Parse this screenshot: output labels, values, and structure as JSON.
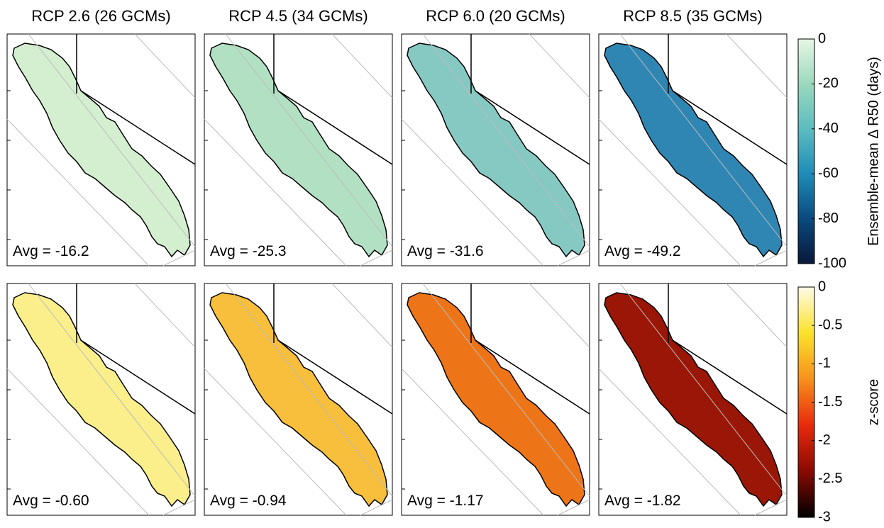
{
  "columns": [
    "RCP 2.6 (26 GCMs)",
    "RCP 4.5 (34 GCMs)",
    "RCP 6.0 (20 GCMs)",
    "RCP 8.5 (35 GCMs)"
  ],
  "rows": [
    {
      "panels": [
        {
          "label": "Avg = -16.2",
          "fill": "#d4efd0"
        },
        {
          "label": "Avg = -25.3",
          "fill": "#b2e0c3"
        },
        {
          "label": "Avg = -31.6",
          "fill": "#86c9c3"
        },
        {
          "label": "Avg = -49.2",
          "fill": "#2f86b3"
        }
      ],
      "colorbar": {
        "label": "Ensemble-mean Δ R50 (days)",
        "lim": [
          -100,
          0
        ],
        "ticks": [
          0,
          -20,
          -40,
          -60,
          -80,
          -100
        ]
      }
    },
    {
      "panels": [
        {
          "label": "Avg = -0.60",
          "fill": "#fbef8c"
        },
        {
          "label": "Avg = -0.94",
          "fill": "#f7bf3c"
        },
        {
          "label": "Avg = -1.17",
          "fill": "#ee7418"
        },
        {
          "label": "Avg = -1.82",
          "fill": "#9a1606"
        }
      ],
      "colorbar": {
        "label": "z-score",
        "lim": [
          -3,
          0
        ],
        "ticks": [
          0,
          -0.5,
          -1,
          -1.5,
          -2,
          -2.5,
          -3
        ]
      }
    }
  ]
}
